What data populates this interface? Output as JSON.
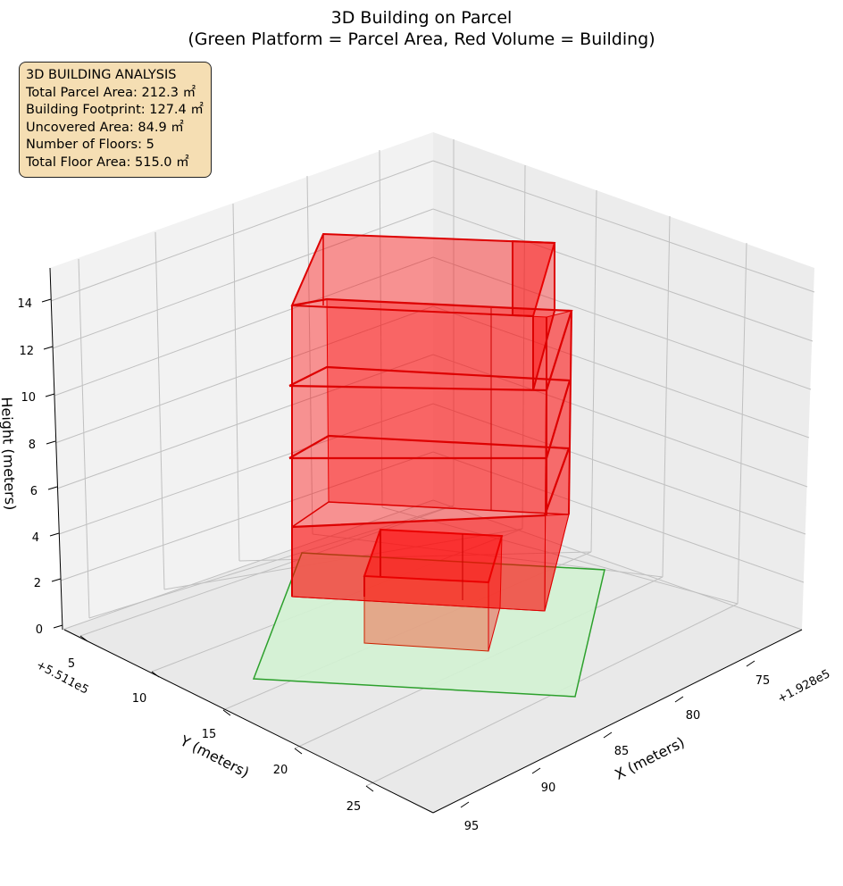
{
  "chart_data": {
    "type": "3d-box",
    "title": "3D Building on Parcel",
    "subtitle": "(Green Platform = Parcel Area, Red Volume = Building)",
    "axes": {
      "x": {
        "label": "X (meters)",
        "offset": "+1.928e5",
        "ticks": [
          75,
          80,
          85,
          90,
          95
        ]
      },
      "y": {
        "label": "Y (meters)",
        "offset": "+5.511e5",
        "ticks": [
          5,
          10,
          15,
          20,
          25
        ]
      },
      "z": {
        "label": "Height (meters)",
        "ticks": [
          0,
          2,
          4,
          6,
          8,
          10,
          12,
          14
        ],
        "range": [
          0,
          15
        ]
      }
    },
    "info_box": {
      "lines": [
        "3D BUILDING ANALYSIS",
        "Total Parcel Area: 212.3 ㎡",
        "Building Footprint: 127.4 ㎡",
        "Uncovered Area: 84.9 ㎡",
        "Number of Floors: 5",
        "Total Floor Area: 515.0 ㎡"
      ]
    },
    "colors": {
      "parcel_fill": "#d3f2d3",
      "parcel_edge": "#2ca02c",
      "building_fill": "#ff0000",
      "building_edge": "#dd0000",
      "info_bg": "#f5deb3"
    }
  }
}
